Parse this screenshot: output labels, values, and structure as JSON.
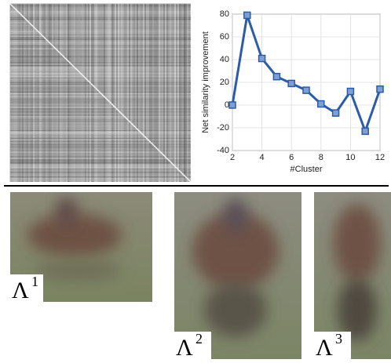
{
  "chart_data": {
    "type": "line",
    "xlabel": "#Cluster",
    "ylabel": "Net similarity improvement",
    "x": [
      2,
      3,
      4,
      5,
      6,
      7,
      8,
      9,
      10,
      11,
      12
    ],
    "values": [
      0,
      79,
      41,
      25,
      19,
      13,
      1,
      -7,
      12,
      -23,
      14
    ],
    "color": "#2b5ca8",
    "xlim": [
      2,
      12
    ],
    "xticks": [
      2,
      4,
      6,
      8,
      10,
      12
    ],
    "ylim": [
      -40,
      80
    ],
    "yticks": [
      -40,
      -20,
      0,
      20,
      40,
      60,
      80
    ],
    "grid": true
  },
  "panels": [
    {
      "symbol": "Λ",
      "index": "1"
    },
    {
      "symbol": "Λ",
      "index": "2"
    },
    {
      "symbol": "Λ",
      "index": "3"
    }
  ]
}
